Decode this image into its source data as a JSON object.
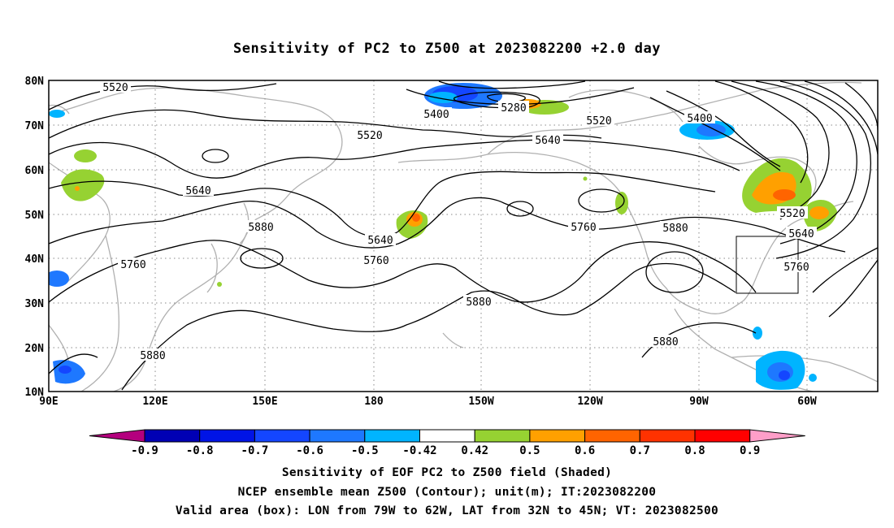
{
  "title": "Sensitivity of PC2 to Z500 at 2023082200 +2.0 day",
  "map": {
    "lat_labels": [
      "80N",
      "70N",
      "60N",
      "50N",
      "40N",
      "30N",
      "20N",
      "10N"
    ],
    "lon_labels": [
      "90E",
      "120E",
      "150E",
      "180",
      "150W",
      "120W",
      "90W",
      "60W"
    ],
    "contour_labels": [
      {
        "text": "5520",
        "id": "c5520-w"
      },
      {
        "text": "5400",
        "id": "c5400-a"
      },
      {
        "text": "5280",
        "id": "c5280"
      },
      {
        "text": "5520",
        "id": "c5520-ak"
      },
      {
        "text": "5400",
        "id": "c5400-b"
      },
      {
        "text": "5520",
        "id": "c5520-m"
      },
      {
        "text": "5640",
        "id": "c5640-a"
      },
      {
        "text": "5640",
        "id": "c5640-w"
      },
      {
        "text": "5880",
        "id": "c5880-a"
      },
      {
        "text": "5640",
        "id": "c5640-b"
      },
      {
        "text": "5760",
        "id": "c5760-a"
      },
      {
        "text": "5760",
        "id": "c5760-w"
      },
      {
        "text": "5760",
        "id": "c5760-b"
      },
      {
        "text": "5880",
        "id": "c5880-b"
      },
      {
        "text": "5880",
        "id": "c5880-c"
      },
      {
        "text": "5880",
        "id": "c5880-d"
      },
      {
        "text": "5880",
        "id": "c5880-e"
      },
      {
        "text": "5520",
        "id": "c5520-e"
      },
      {
        "text": "5640",
        "id": "c5640-e"
      },
      {
        "text": "5760",
        "id": "c5760-e"
      }
    ],
    "valid_box": {
      "lon_from": "79W",
      "lon_to": "62W",
      "lat_from": "32N",
      "lat_to": "45N"
    }
  },
  "colorbar": {
    "labels": [
      "-0.9",
      "-0.8",
      "-0.7",
      "-0.6",
      "-0.5",
      "-0.42",
      "0.42",
      "0.5",
      "0.6",
      "0.7",
      "0.8",
      "0.9"
    ],
    "colors": [
      "#b4007e",
      "#0000b4",
      "#0014e6",
      "#1446ff",
      "#1e78ff",
      "#00b4ff",
      "#ffffff",
      "#96d232",
      "#ffa000",
      "#ff6400",
      "#ff3200",
      "#ff0000",
      "#ff9ec8"
    ]
  },
  "captions": {
    "line1": "Sensitivity of EOF PC2 to Z500 field (Shaded)",
    "line2": "NCEP ensemble mean Z500 (Contour); unit(m); IT:2023082200",
    "line3": "Valid area (box): LON from 79W to 62W, LAT from 32N to 45N; VT: 2023082500"
  }
}
